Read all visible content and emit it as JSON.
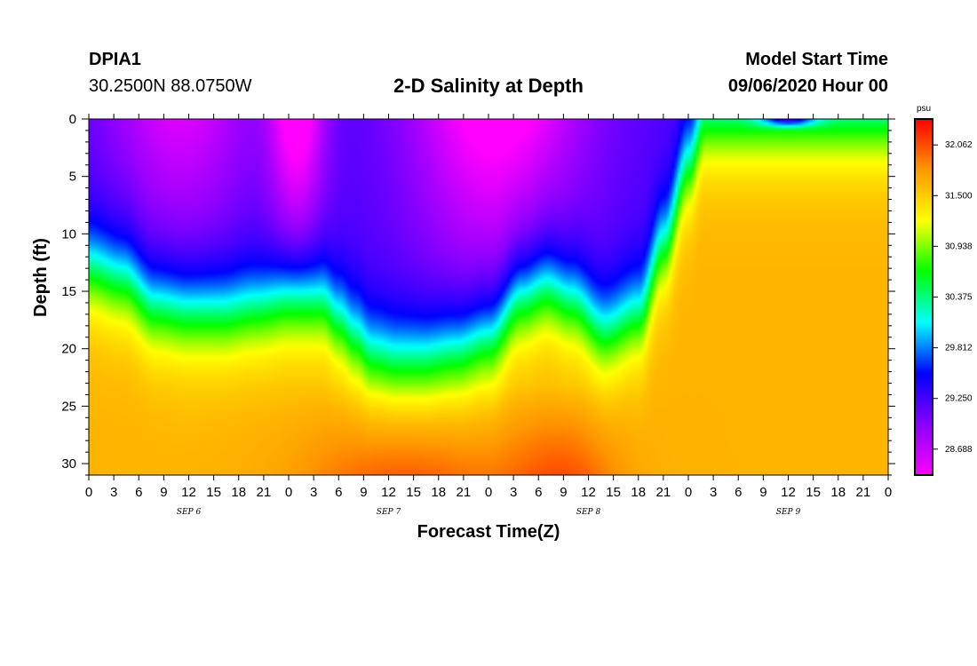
{
  "header": {
    "station_id": "DPIA1",
    "station_location": "30.2500N 88.0750W",
    "title": "2-D Salinity at Depth",
    "start_label": "Model Start Time",
    "start_value": "09/06/2020 Hour 00"
  },
  "chart_data": {
    "type": "heatmap",
    "title": "2-D Salinity at Depth",
    "xlabel": "Forecast Time(Z)",
    "ylabel": "Depth (ft)",
    "x_ticks": [
      "0",
      "3",
      "6",
      "9",
      "12",
      "15",
      "18",
      "21",
      "0",
      "3",
      "6",
      "9",
      "12",
      "15",
      "18",
      "21",
      "0",
      "3",
      "6",
      "9",
      "12",
      "15",
      "18",
      "21",
      "0",
      "3",
      "6",
      "9",
      "12",
      "15",
      "18",
      "21",
      "0"
    ],
    "x_range_hours": [
      0,
      96
    ],
    "day_labels": [
      {
        "label": "SEP 6",
        "hour": 12
      },
      {
        "label": "SEP 7",
        "hour": 36
      },
      {
        "label": "SEP 8",
        "hour": 60
      },
      {
        "label": "SEP 9",
        "hour": 84
      }
    ],
    "y_ticks": [
      0,
      5,
      10,
      15,
      20,
      25,
      30
    ],
    "y_range_ft": [
      0,
      31
    ],
    "y_inverted": true,
    "colorbar": {
      "unit": "psu",
      "ticks": [
        "32.062",
        "31.500",
        "30.938",
        "30.375",
        "29.812",
        "29.250",
        "28.688"
      ],
      "range": [
        28.4,
        32.35
      ],
      "colors": [
        "#ff00ff",
        "#8a00ff",
        "#0000ff",
        "#00ffff",
        "#00ff00",
        "#ffff00",
        "#ff9900",
        "#ff0000"
      ]
    },
    "halocline_depth_ft": [
      {
        "hour": 0,
        "depth": 13
      },
      {
        "hour": 4,
        "depth": 14
      },
      {
        "hour": 8,
        "depth": 16.5
      },
      {
        "hour": 12,
        "depth": 17
      },
      {
        "hour": 16,
        "depth": 17
      },
      {
        "hour": 20,
        "depth": 16.5
      },
      {
        "hour": 24,
        "depth": 16
      },
      {
        "hour": 28,
        "depth": 16
      },
      {
        "hour": 30,
        "depth": 17.5
      },
      {
        "hour": 32,
        "depth": 19
      },
      {
        "hour": 34,
        "depth": 20.5
      },
      {
        "hour": 37,
        "depth": 21
      },
      {
        "hour": 40,
        "depth": 21
      },
      {
        "hour": 44,
        "depth": 20.5
      },
      {
        "hour": 48,
        "depth": 19.5
      },
      {
        "hour": 52,
        "depth": 16
      },
      {
        "hour": 55,
        "depth": 15
      },
      {
        "hour": 58,
        "depth": 16
      },
      {
        "hour": 62,
        "depth": 18.5
      },
      {
        "hour": 66,
        "depth": 17
      },
      {
        "hour": 69,
        "depth": 11
      },
      {
        "hour": 72,
        "depth": 4
      },
      {
        "hour": 74,
        "depth": 0
      },
      {
        "hour": 76,
        "depth": 0
      },
      {
        "hour": 80,
        "depth": 0
      },
      {
        "hour": 84,
        "depth": 0
      },
      {
        "hour": 88,
        "depth": 0
      },
      {
        "hour": 92,
        "depth": 0
      },
      {
        "hour": 96,
        "depth": 0
      }
    ]
  }
}
